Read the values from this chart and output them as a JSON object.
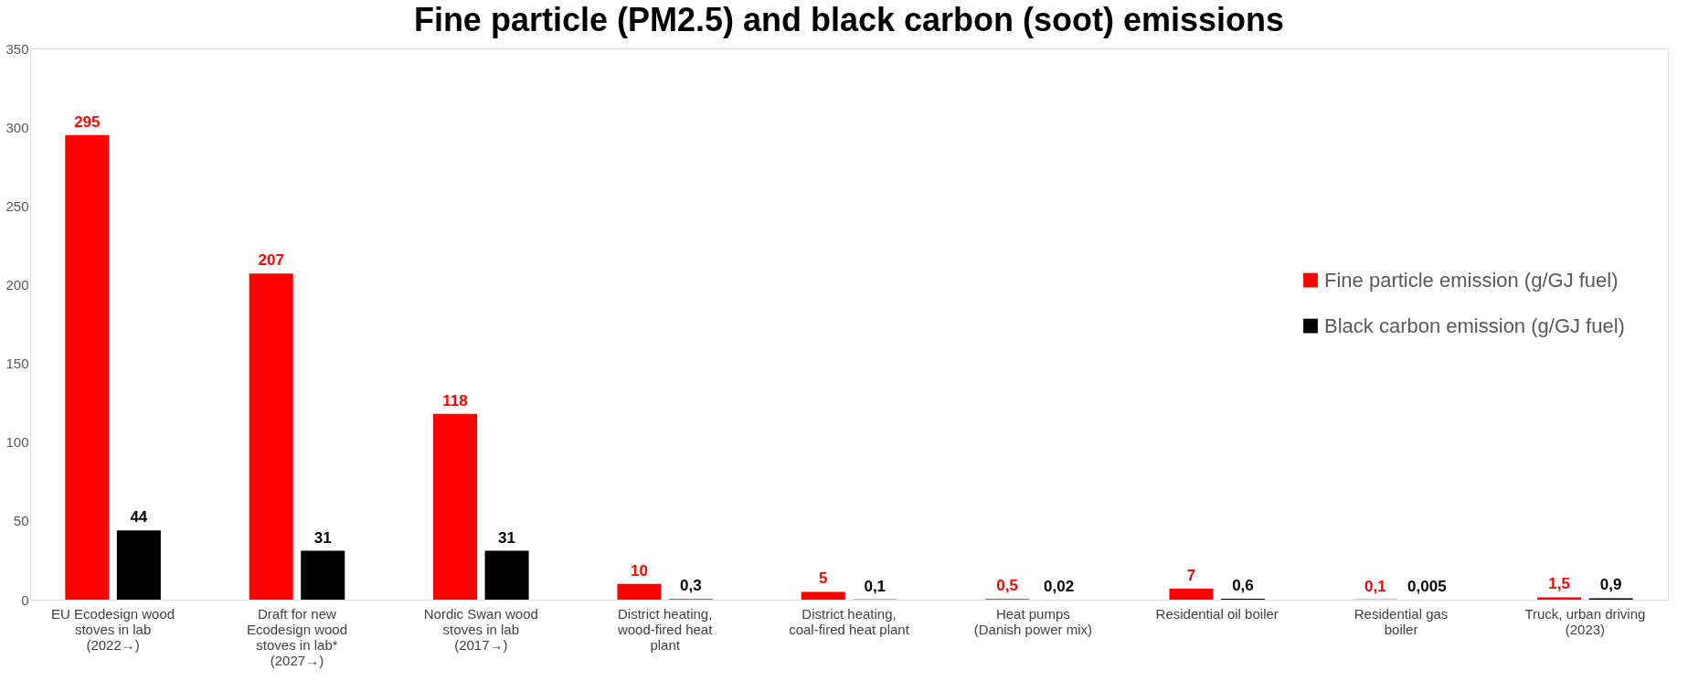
{
  "chart_data": {
    "type": "bar",
    "title": "Fine particle (PM2.5) and black carbon (soot) emissions",
    "categories": [
      "EU Ecodesign wood\nstoves in lab\n(2022→)",
      "Draft for new\nEcodesign wood\nstoves in lab*\n(2027→)",
      "Nordic Swan wood\nstoves in lab\n(2017→)",
      "District heating,\nwood-fired heat\nplant",
      "District heating,\ncoal-fired heat plant",
      "Heat pumps\n(Danish power mix)",
      "Residential oil boiler",
      "Residential gas\nboiler",
      "Truck, urban driving\n(2023)"
    ],
    "series": [
      {
        "name": "Fine particle emission (g/GJ fuel)",
        "color": "#ff0000",
        "values": [
          295,
          207,
          118,
          10,
          5,
          0.5,
          7,
          0.1,
          1.5
        ],
        "value_labels": [
          "295",
          "207",
          "118",
          "10",
          "5",
          "0,5",
          "7",
          "0,1",
          "1,5"
        ]
      },
      {
        "name": "Black carbon emission (g/GJ fuel)",
        "color": "#000000",
        "values": [
          44,
          31,
          31,
          0.3,
          0.1,
          0.02,
          0.6,
          0.005,
          0.9
        ],
        "value_labels": [
          "44",
          "31",
          "31",
          "0,3",
          "0,1",
          "0,02",
          "0,6",
          "0,005",
          "0,9"
        ]
      }
    ],
    "ylim": [
      0,
      350
    ],
    "yticks": [
      0,
      50,
      100,
      150,
      200,
      250,
      300,
      350
    ],
    "grid": false,
    "legend": "right"
  }
}
